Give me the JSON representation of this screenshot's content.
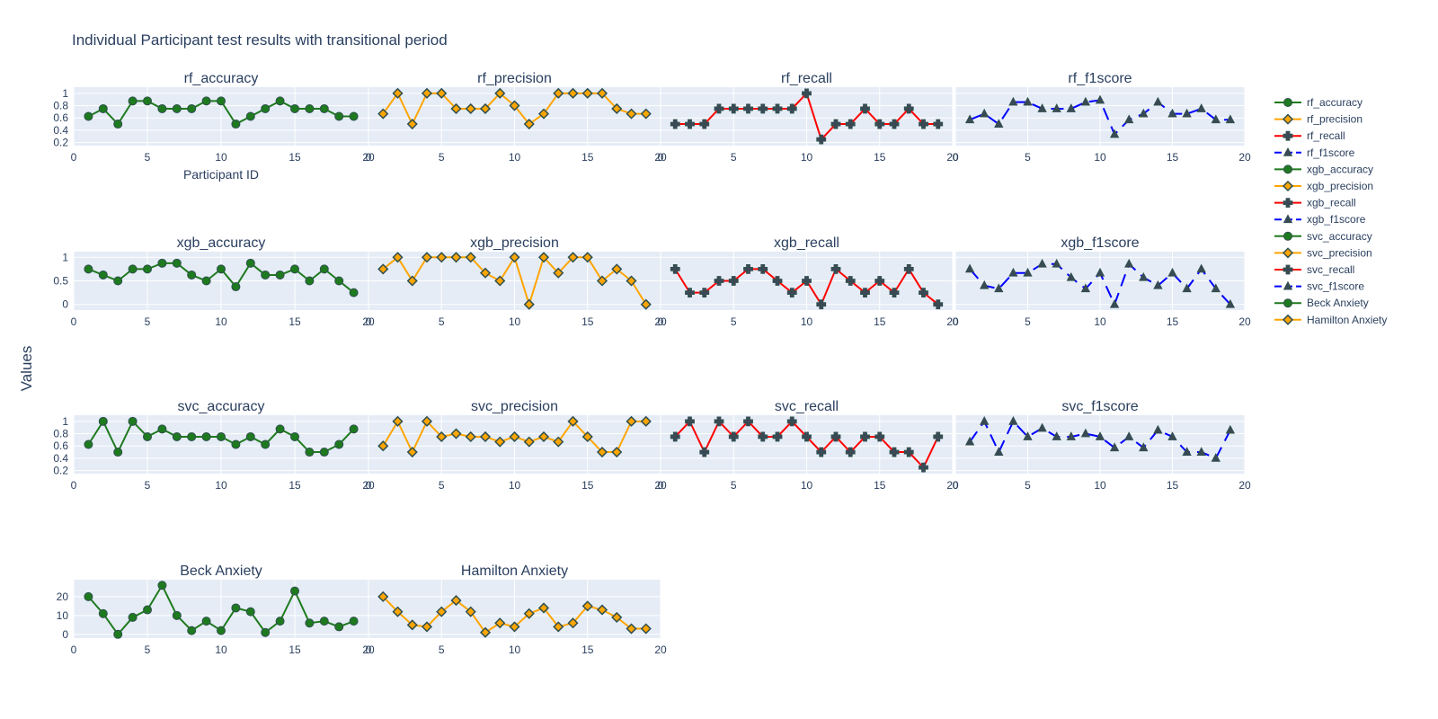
{
  "chart_data": {
    "type": "line",
    "title": "Individual Participant test results with transitional period",
    "ylabel": "Values",
    "xlabel": "Participant ID",
    "xlim": [
      0,
      20
    ],
    "x_ticks": [
      0,
      5,
      10,
      15,
      20
    ],
    "x": [
      1,
      2,
      3,
      4,
      5,
      6,
      7,
      8,
      9,
      10,
      11,
      12,
      13,
      14,
      15,
      16,
      17,
      18,
      19
    ],
    "legend_position": "right",
    "panels": [
      {
        "name": "rf_accuracy",
        "title": "rf_accuracy",
        "color": "#1e7a1e",
        "marker": "circle",
        "dash": "solid",
        "ylim": [
          0.15,
          1.1
        ],
        "y_ticks": [
          0.2,
          0.4,
          0.6,
          0.8,
          1
        ],
        "y_tick_labels": [
          "0.2",
          "0.4",
          "0.6",
          "0.8",
          "1"
        ],
        "values": [
          0.625,
          0.75,
          0.5,
          0.875,
          0.875,
          0.75,
          0.75,
          0.75,
          0.875,
          0.875,
          0.5,
          0.625,
          0.75,
          0.875,
          0.75,
          0.75,
          0.75,
          0.625,
          0.625
        ]
      },
      {
        "name": "rf_precision",
        "title": "rf_precision",
        "color": "#ffa500",
        "marker": "diamond",
        "dash": "solid",
        "ylim": [
          0.15,
          1.1
        ],
        "y_ticks": [
          0.2,
          0.4,
          0.6,
          0.8,
          1
        ],
        "y_tick_labels": [],
        "values": [
          0.667,
          1.0,
          0.5,
          1.0,
          1.0,
          0.75,
          0.75,
          0.75,
          1.0,
          0.8,
          0.5,
          0.667,
          1.0,
          1.0,
          1.0,
          1.0,
          0.75,
          0.667,
          0.667
        ]
      },
      {
        "name": "rf_recall",
        "title": "rf_recall",
        "color": "#ff0000",
        "marker": "cross",
        "dash": "solid",
        "ylim": [
          0.15,
          1.1
        ],
        "y_ticks": [
          0.2,
          0.4,
          0.6,
          0.8,
          1
        ],
        "y_tick_labels": [],
        "values": [
          0.5,
          0.5,
          0.5,
          0.75,
          0.75,
          0.75,
          0.75,
          0.75,
          0.75,
          1.0,
          0.25,
          0.5,
          0.5,
          0.75,
          0.5,
          0.5,
          0.75,
          0.5,
          0.5
        ]
      },
      {
        "name": "rf_f1score",
        "title": "rf_f1score",
        "color": "#0000ff",
        "marker": "triangle",
        "dash": "dash",
        "ylim": [
          0.15,
          1.1
        ],
        "y_ticks": [
          0.2,
          0.4,
          0.6,
          0.8,
          1
        ],
        "y_tick_labels": [],
        "values": [
          0.571,
          0.667,
          0.5,
          0.857,
          0.857,
          0.75,
          0.75,
          0.75,
          0.857,
          0.889,
          0.333,
          0.571,
          0.667,
          0.857,
          0.667,
          0.667,
          0.75,
          0.571,
          0.571
        ]
      },
      {
        "name": "xgb_accuracy",
        "title": "xgb_accuracy",
        "color": "#1e7a1e",
        "marker": "circle",
        "dash": "solid",
        "ylim": [
          -0.12,
          1.12
        ],
        "y_ticks": [
          0,
          0.5,
          1
        ],
        "y_tick_labels": [
          "0",
          "0.5",
          "1"
        ],
        "values": [
          0.75,
          0.625,
          0.5,
          0.75,
          0.75,
          0.875,
          0.875,
          0.625,
          0.5,
          0.75,
          0.375,
          0.875,
          0.625,
          0.625,
          0.75,
          0.5,
          0.75,
          0.5,
          0.25
        ]
      },
      {
        "name": "xgb_precision",
        "title": "xgb_precision",
        "color": "#ffa500",
        "marker": "diamond",
        "dash": "solid",
        "ylim": [
          -0.12,
          1.12
        ],
        "y_ticks": [
          0,
          0.5,
          1
        ],
        "y_tick_labels": [],
        "values": [
          0.75,
          1.0,
          0.5,
          1.0,
          1.0,
          1.0,
          1.0,
          0.667,
          0.5,
          1.0,
          0.0,
          1.0,
          0.667,
          1.0,
          1.0,
          0.5,
          0.75,
          0.5,
          0.0
        ]
      },
      {
        "name": "xgb_recall",
        "title": "xgb_recall",
        "color": "#ff0000",
        "marker": "cross",
        "dash": "solid",
        "ylim": [
          -0.12,
          1.12
        ],
        "y_ticks": [
          0,
          0.5,
          1
        ],
        "y_tick_labels": [],
        "values": [
          0.75,
          0.25,
          0.25,
          0.5,
          0.5,
          0.75,
          0.75,
          0.5,
          0.25,
          0.5,
          0.0,
          0.75,
          0.5,
          0.25,
          0.5,
          0.25,
          0.75,
          0.25,
          0.0
        ]
      },
      {
        "name": "xgb_f1score",
        "title": "xgb_f1score",
        "color": "#0000ff",
        "marker": "triangle",
        "dash": "dash",
        "ylim": [
          -0.12,
          1.12
        ],
        "y_ticks": [
          0,
          0.5,
          1
        ],
        "y_tick_labels": [],
        "values": [
          0.75,
          0.4,
          0.333,
          0.667,
          0.667,
          0.857,
          0.857,
          0.571,
          0.333,
          0.667,
          0.0,
          0.857,
          0.571,
          0.4,
          0.667,
          0.333,
          0.75,
          0.333,
          0.0
        ]
      },
      {
        "name": "svc_accuracy",
        "title": "svc_accuracy",
        "color": "#1e7a1e",
        "marker": "circle",
        "dash": "solid",
        "ylim": [
          0.15,
          1.1
        ],
        "y_ticks": [
          0.2,
          0.4,
          0.6,
          0.8,
          1
        ],
        "y_tick_labels": [
          "0.2",
          "0.4",
          "0.6",
          "0.8",
          "1"
        ],
        "values": [
          0.625,
          1.0,
          0.5,
          1.0,
          0.75,
          0.875,
          0.75,
          0.75,
          0.75,
          0.75,
          0.625,
          0.75,
          0.625,
          0.875,
          0.75,
          0.5,
          0.5,
          0.625,
          0.875
        ]
      },
      {
        "name": "svc_precision",
        "title": "svc_precision",
        "color": "#ffa500",
        "marker": "diamond",
        "dash": "solid",
        "ylim": [
          0.15,
          1.1
        ],
        "y_ticks": [
          0.2,
          0.4,
          0.6,
          0.8,
          1
        ],
        "y_tick_labels": [],
        "values": [
          0.6,
          1.0,
          0.5,
          1.0,
          0.75,
          0.8,
          0.75,
          0.75,
          0.667,
          0.75,
          0.667,
          0.75,
          0.667,
          1.0,
          0.75,
          0.5,
          0.5,
          1.0,
          1.0
        ]
      },
      {
        "name": "svc_recall",
        "title": "svc_recall",
        "color": "#ff0000",
        "marker": "cross",
        "dash": "solid",
        "ylim": [
          0.15,
          1.1
        ],
        "y_ticks": [
          0.2,
          0.4,
          0.6,
          0.8,
          1
        ],
        "y_tick_labels": [],
        "values": [
          0.75,
          1.0,
          0.5,
          1.0,
          0.75,
          1.0,
          0.75,
          0.75,
          1.0,
          0.75,
          0.5,
          0.75,
          0.5,
          0.75,
          0.75,
          0.5,
          0.5,
          0.25,
          0.75
        ]
      },
      {
        "name": "svc_f1score",
        "title": "svc_f1score",
        "color": "#0000ff",
        "marker": "triangle",
        "dash": "dash",
        "ylim": [
          0.15,
          1.1
        ],
        "y_ticks": [
          0.2,
          0.4,
          0.6,
          0.8,
          1
        ],
        "y_tick_labels": [],
        "values": [
          0.667,
          1.0,
          0.5,
          1.0,
          0.75,
          0.889,
          0.75,
          0.75,
          0.8,
          0.75,
          0.571,
          0.75,
          0.571,
          0.857,
          0.75,
          0.5,
          0.5,
          0.4,
          0.857
        ]
      },
      {
        "name": "Beck Anxiety",
        "title": "Beck Anxiety",
        "color": "#1e7a1e",
        "marker": "circle",
        "dash": "solid",
        "ylim": [
          -2,
          29
        ],
        "y_ticks": [
          0,
          10,
          20
        ],
        "y_tick_labels": [
          "0",
          "10",
          "20"
        ],
        "values": [
          20,
          11,
          0,
          9,
          13,
          26,
          10,
          2,
          7,
          2,
          14,
          12,
          1,
          7,
          23,
          6,
          7,
          4,
          7
        ]
      },
      {
        "name": "Hamilton Anxiety",
        "title": "Hamilton Anxiety",
        "color": "#ffa500",
        "marker": "diamond",
        "dash": "solid",
        "ylim": [
          -2,
          29
        ],
        "y_ticks": [
          0,
          10,
          20
        ],
        "y_tick_labels": [],
        "values": [
          20,
          12,
          5,
          4,
          12,
          18,
          12,
          1,
          6,
          4,
          11,
          14,
          4,
          6,
          15,
          13,
          9,
          3,
          3
        ]
      }
    ]
  }
}
